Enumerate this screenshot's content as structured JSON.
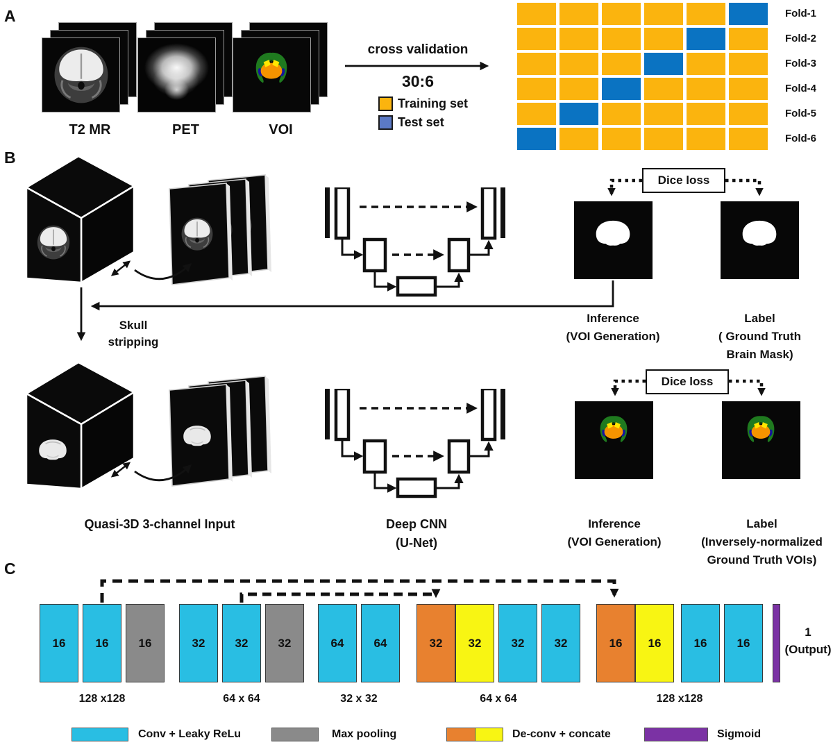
{
  "figure": {
    "panel_a_label": "A",
    "panel_b_label": "B",
    "panel_c_label": "C"
  },
  "panel_a": {
    "stacks": [
      {
        "label": "T2 MR"
      },
      {
        "label": "PET"
      },
      {
        "label": "VOI"
      }
    ],
    "cross_validation": {
      "arrow_label": "cross validation",
      "ratio": "30:6"
    },
    "legend": {
      "training": {
        "label": "Training set",
        "color": "#FBB40E"
      },
      "test": {
        "label": "Test set",
        "color": "#5B79C5"
      }
    },
    "folds": {
      "labels": [
        "Fold-1",
        "Fold-2",
        "Fold-3",
        "Fold-4",
        "Fold-5",
        "Fold-6"
      ],
      "columns": 6,
      "test_column_by_row": [
        6,
        5,
        4,
        3,
        2,
        1
      ],
      "train_color": "#FBB40E",
      "test_color": "#0A73C2"
    }
  },
  "panel_b": {
    "skull_stripping_line1": "Skull",
    "skull_stripping_line2": "stripping",
    "dice_loss": "Dice loss",
    "top_row": {
      "inference_line1": "Inference",
      "inference_line2": "(VOI Generation)",
      "label_line1": "Label",
      "label_line2": "( Ground Truth",
      "label_line3": "Brain Mask)"
    },
    "bottom_row": {
      "input_caption": "Quasi-3D 3-channel Input",
      "cnn_caption_line1": "Deep CNN",
      "cnn_caption_line2": "(U-Net)",
      "inference_line1": "Inference",
      "inference_line2": "(VOI Generation)",
      "label_line1": "Label",
      "label_line2": "(Inversely-normalized",
      "label_line3": "Ground Truth VOIs)"
    }
  },
  "panel_c": {
    "blocks": [
      {
        "value": "16",
        "type": "conv"
      },
      {
        "value": "16",
        "type": "conv"
      },
      {
        "value": "16",
        "type": "pool"
      },
      {
        "value": "32",
        "type": "conv"
      },
      {
        "value": "32",
        "type": "conv"
      },
      {
        "value": "32",
        "type": "pool"
      },
      {
        "value": "64",
        "type": "conv"
      },
      {
        "value": "64",
        "type": "conv"
      },
      {
        "value": "32",
        "type": "deconv"
      },
      {
        "value": "32",
        "type": "concat"
      },
      {
        "value": "32",
        "type": "conv"
      },
      {
        "value": "32",
        "type": "conv"
      },
      {
        "value": "16",
        "type": "deconv"
      },
      {
        "value": "16",
        "type": "concat"
      },
      {
        "value": "16",
        "type": "conv"
      },
      {
        "value": "16",
        "type": "conv"
      }
    ],
    "size_labels": [
      "128 x128",
      "64 x 64",
      "32 x 32",
      "64 x 64",
      "128 x128"
    ],
    "output_line1": "1",
    "output_line2": "(Output)",
    "legend": [
      {
        "label": "Conv + Leaky ReLu"
      },
      {
        "label": "Max pooling"
      },
      {
        "label": "De-conv + concate"
      },
      {
        "label": "Sigmoid"
      }
    ],
    "colors": {
      "conv": "#29BEE3",
      "pool": "#8A8A8A",
      "deconv": "#E8812F",
      "concat": "#F8F513",
      "sigmoid": "#7B32A4"
    }
  }
}
